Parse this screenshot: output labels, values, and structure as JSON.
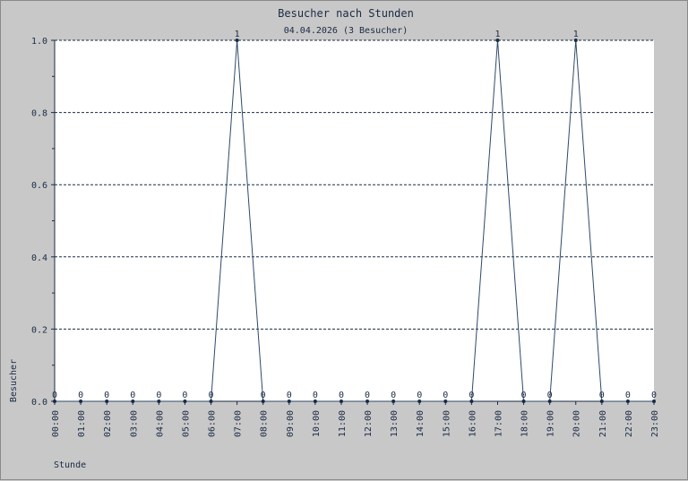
{
  "chart_data": {
    "type": "line",
    "title": "Besucher nach Stunden",
    "subtitle": "04.04.2026 (3 Besucher)",
    "xlabel": "Stunde",
    "ylabel": "Besucher",
    "categories": [
      "00:00",
      "01:00",
      "02:00",
      "03:00",
      "04:00",
      "05:00",
      "06:00",
      "07:00",
      "08:00",
      "09:00",
      "10:00",
      "11:00",
      "12:00",
      "13:00",
      "14:00",
      "15:00",
      "16:00",
      "17:00",
      "18:00",
      "19:00",
      "20:00",
      "21:00",
      "22:00",
      "23:00"
    ],
    "values": [
      0,
      0,
      0,
      0,
      0,
      0,
      0,
      1,
      0,
      0,
      0,
      0,
      0,
      0,
      0,
      0,
      0,
      1,
      0,
      0,
      1,
      0,
      0,
      0
    ],
    "ylim": [
      0,
      1.0
    ],
    "yticks": [
      "0.0",
      "0.2",
      "0.4",
      "0.6",
      "0.8",
      "1.0"
    ],
    "grid": true,
    "colors": {
      "line": "#2f4a6a",
      "grid": "#1a2a44",
      "plot_bg": "#ffffff",
      "frame_bg": "#c8c8c8"
    }
  }
}
